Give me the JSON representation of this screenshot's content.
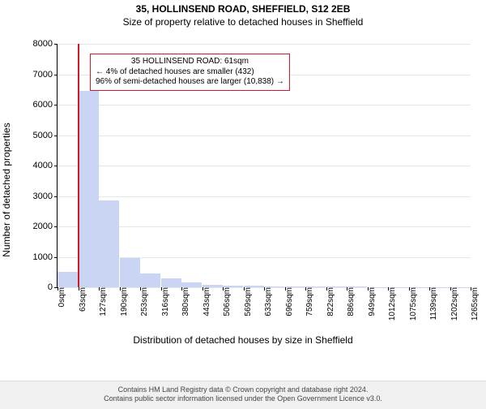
{
  "title": {
    "supertitle": "35, HOLLINSEND ROAD, SHEFFIELD, S12 2EB",
    "subtitle": "Size of property relative to detached houses in Sheffield"
  },
  "chart": {
    "type": "bar",
    "y_axis": {
      "label": "Number of detached properties",
      "min": 0,
      "max": 8000,
      "tick_step": 1000,
      "ticks": [
        0,
        1000,
        2000,
        3000,
        4000,
        5000,
        6000,
        7000,
        8000
      ],
      "label_fontsize": 12,
      "tick_fontsize": 11
    },
    "x_axis": {
      "label": "Distribution of detached houses by size in Sheffield",
      "ticks": [
        "0sqm",
        "63sqm",
        "127sqm",
        "190sqm",
        "253sqm",
        "316sqm",
        "380sqm",
        "443sqm",
        "506sqm",
        "569sqm",
        "633sqm",
        "696sqm",
        "759sqm",
        "822sqm",
        "886sqm",
        "949sqm",
        "1012sqm",
        "1075sqm",
        "1139sqm",
        "1202sqm",
        "1265sqm"
      ],
      "label_fontsize": 12,
      "tick_fontsize": 10
    },
    "bars": {
      "values": [
        520,
        6450,
        2850,
        950,
        450,
        300,
        150,
        80,
        60,
        50,
        30,
        30,
        20,
        20,
        20,
        10,
        10,
        10,
        10,
        10
      ],
      "color": "#c9d5f2"
    },
    "grid_color": "#e6e6e6",
    "background_color": "#ffffff",
    "marker": {
      "x_value_sqm": 61,
      "x_max_sqm": 1265,
      "color": "#d11a2a"
    },
    "callout": {
      "line1": "35 HOLLINSEND ROAD: 61sqm",
      "line2": "← 4% of detached houses are smaller (432)",
      "line3": "96% of semi-detached houses are larger (10,838) →",
      "border_color": "#d11a2a",
      "fontsize": 10
    }
  },
  "footer": {
    "line1": "Contains HM Land Registry data © Crown copyright and database right 2024.",
    "line2": "Contains public sector information licensed under the Open Government Licence v3.0."
  }
}
